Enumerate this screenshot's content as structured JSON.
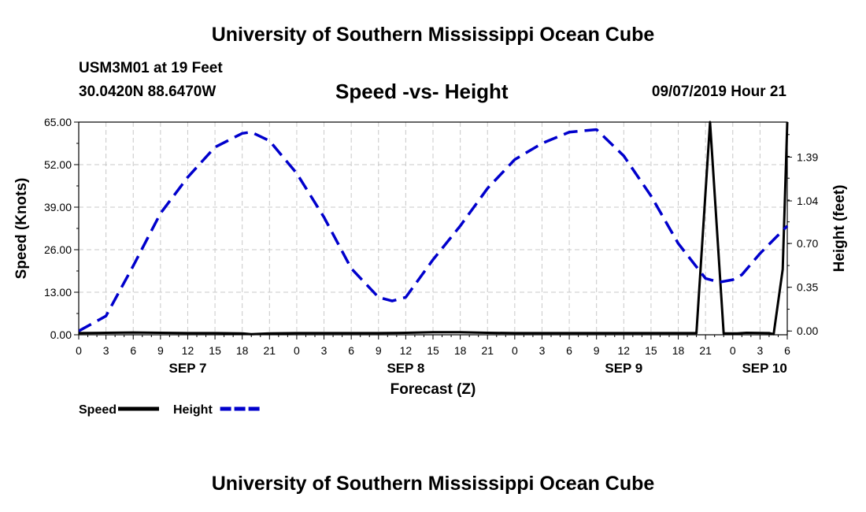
{
  "page": {
    "title": "University of Southern Mississippi Ocean Cube",
    "footer_title": "University of Southern Mississippi Ocean Cube",
    "station": "USM3M01 at 19 Feet",
    "coords": "30.0420N 88.6470W",
    "date": "09/07/2019 Hour 21"
  },
  "chart_data": {
    "type": "line",
    "title": "Speed -vs- Height",
    "xlabel": "Forecast (Z)",
    "ylabel_left": "Speed (Knots)",
    "ylabel_right": "Height (feet)",
    "x_range_hours": [
      0,
      78
    ],
    "x_ticks": [
      {
        "h": 0,
        "label": "0"
      },
      {
        "h": 3,
        "label": "3"
      },
      {
        "h": 6,
        "label": "6"
      },
      {
        "h": 9,
        "label": "9"
      },
      {
        "h": 12,
        "label": "12"
      },
      {
        "h": 15,
        "label": "15"
      },
      {
        "h": 18,
        "label": "18"
      },
      {
        "h": 21,
        "label": "21"
      },
      {
        "h": 24,
        "label": "0"
      },
      {
        "h": 27,
        "label": "3"
      },
      {
        "h": 30,
        "label": "6"
      },
      {
        "h": 33,
        "label": "9"
      },
      {
        "h": 36,
        "label": "12"
      },
      {
        "h": 39,
        "label": "15"
      },
      {
        "h": 42,
        "label": "18"
      },
      {
        "h": 45,
        "label": "21"
      },
      {
        "h": 48,
        "label": "0"
      },
      {
        "h": 51,
        "label": "3"
      },
      {
        "h": 54,
        "label": "6"
      },
      {
        "h": 57,
        "label": "9"
      },
      {
        "h": 60,
        "label": "12"
      },
      {
        "h": 63,
        "label": "15"
      },
      {
        "h": 66,
        "label": "18"
      },
      {
        "h": 69,
        "label": "21"
      },
      {
        "h": 72,
        "label": "0"
      },
      {
        "h": 75,
        "label": "3"
      },
      {
        "h": 78,
        "label": "6"
      }
    ],
    "day_labels": [
      {
        "h": 12,
        "label": "SEP 7"
      },
      {
        "h": 36,
        "label": "SEP 8"
      },
      {
        "h": 60,
        "label": "SEP 9"
      },
      {
        "h": 75.5,
        "label": "SEP 10"
      }
    ],
    "y_left": {
      "min": 0,
      "max": 65,
      "ticks": [
        "0.00",
        "13.00",
        "26.00",
        "39.00",
        "52.00",
        "65.00"
      ],
      "tick_values": [
        0,
        13,
        26,
        39,
        52,
        65
      ]
    },
    "y_right": {
      "min": -0.03,
      "max": 1.67,
      "ticks": [
        "0.00",
        "0.35",
        "0.70",
        "1.04",
        "1.39"
      ],
      "tick_values": [
        0,
        0.35,
        0.7,
        1.04,
        1.39
      ]
    },
    "grid": true,
    "legend": [
      {
        "name": "Speed",
        "color": "#000000",
        "style": "solid"
      },
      {
        "name": "Height",
        "color": "#0000cc",
        "style": "dashed"
      }
    ],
    "series": [
      {
        "name": "Speed",
        "axis": "left",
        "color": "#000000",
        "x": [
          0,
          3,
          6,
          9,
          12,
          15,
          18,
          19,
          21,
          24,
          27,
          30,
          33,
          36,
          39,
          42,
          45,
          48,
          51,
          54,
          57,
          60,
          63,
          66,
          68,
          69.5,
          71,
          72.5,
          73.5,
          76,
          76.5,
          77.5,
          78
        ],
        "y": [
          0.5,
          0.6,
          0.7,
          0.6,
          0.5,
          0.5,
          0.4,
          0.2,
          0.4,
          0.5,
          0.5,
          0.5,
          0.5,
          0.6,
          0.8,
          0.8,
          0.6,
          0.5,
          0.5,
          0.5,
          0.5,
          0.5,
          0.5,
          0.5,
          0.5,
          65,
          0.4,
          0.4,
          0.6,
          0.5,
          0.2,
          20,
          65
        ]
      },
      {
        "name": "Height",
        "axis": "right",
        "color": "#0000cc",
        "x": [
          0,
          3,
          6,
          9,
          12,
          15,
          18,
          19,
          21,
          24,
          27,
          30,
          33,
          34.5,
          36,
          39,
          42,
          45,
          48,
          51,
          54,
          57,
          60,
          63,
          66,
          69,
          70.5,
          72,
          73,
          75,
          78
        ],
        "y": [
          0.0,
          0.12,
          0.52,
          0.94,
          1.23,
          1.47,
          1.58,
          1.59,
          1.52,
          1.26,
          0.91,
          0.5,
          0.27,
          0.24,
          0.27,
          0.57,
          0.84,
          1.14,
          1.37,
          1.5,
          1.59,
          1.61,
          1.4,
          1.08,
          0.7,
          0.42,
          0.39,
          0.41,
          0.45,
          0.62,
          0.84
        ]
      }
    ]
  }
}
